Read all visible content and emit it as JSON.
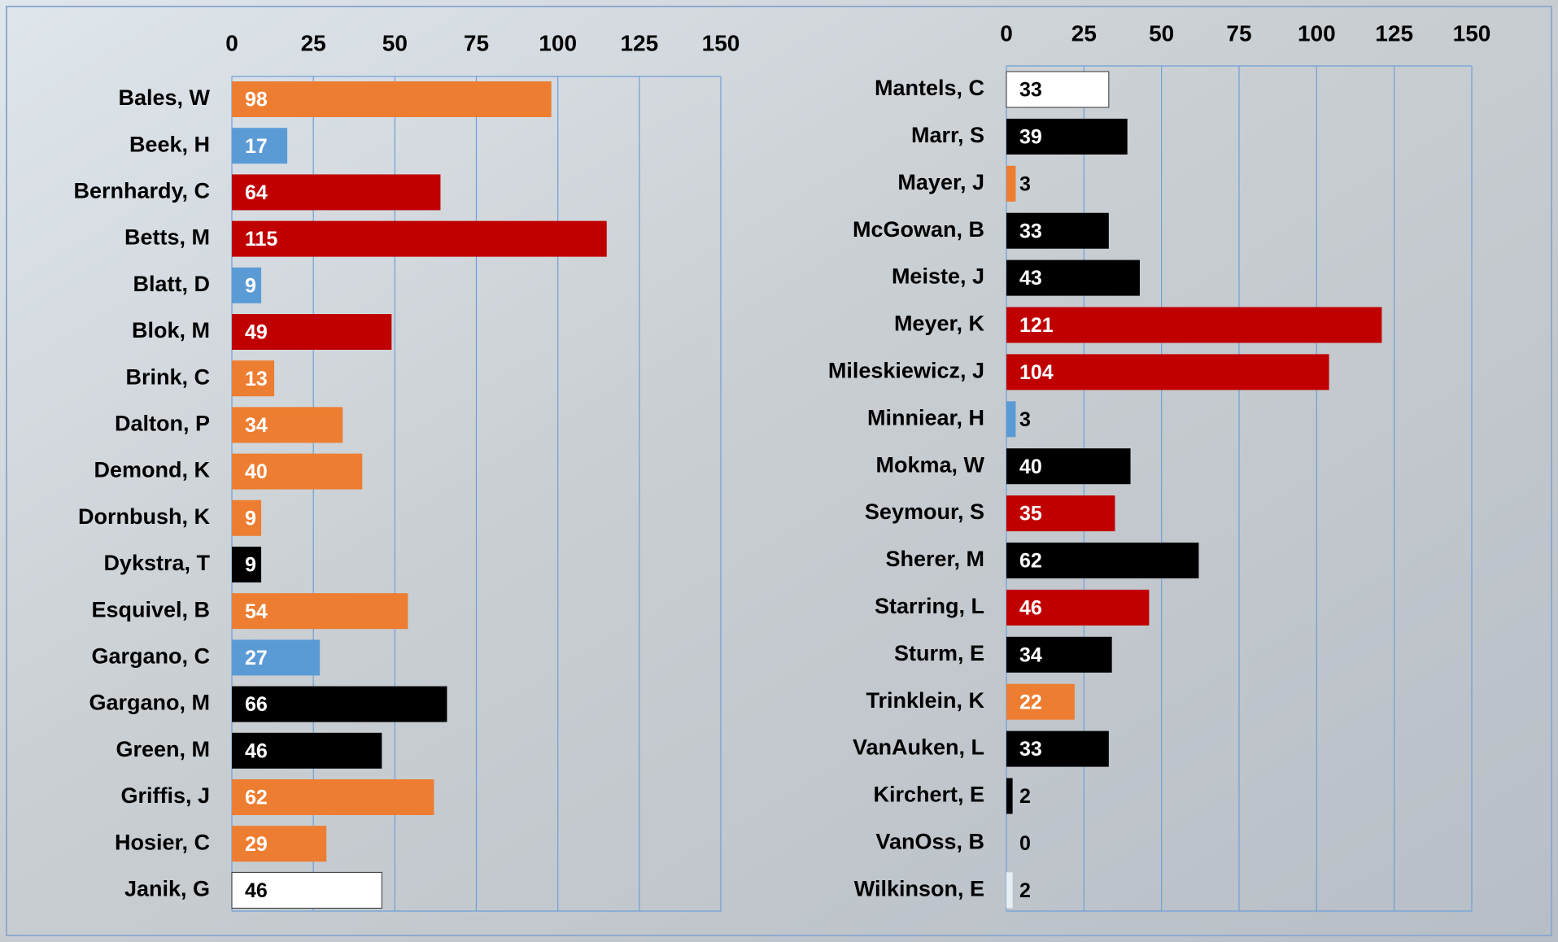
{
  "chart_data": [
    {
      "type": "bar",
      "orientation": "horizontal",
      "categories": [
        "Bales, W",
        "Beek, H",
        "Bernhardy, C",
        "Betts, M",
        "Blatt, D",
        "Blok, M",
        "Brink, C",
        "Dalton, P",
        "Demond, K",
        "Dornbush, K",
        "Dykstra, T",
        "Esquivel, B",
        "Gargano, C",
        "Gargano, M",
        "Green, M",
        "Griffis, J",
        "Hosier, C",
        "Janik, G"
      ],
      "values": [
        98,
        17,
        64,
        115,
        9,
        49,
        13,
        34,
        40,
        9,
        9,
        54,
        27,
        66,
        46,
        62,
        29,
        46
      ],
      "colors": [
        "#ed7d31",
        "#5b9bd5",
        "#c00000",
        "#c00000",
        "#5b9bd5",
        "#c00000",
        "#ed7d31",
        "#ed7d31",
        "#ed7d31",
        "#ed7d31",
        "#000000",
        "#ed7d31",
        "#5b9bd5",
        "#000000",
        "#000000",
        "#ed7d31",
        "#ed7d31",
        "#ffffff"
      ],
      "xlim": [
        0,
        150
      ],
      "xticks": [
        0,
        25,
        50,
        75,
        100,
        125,
        150
      ],
      "grid": true
    },
    {
      "type": "bar",
      "orientation": "horizontal",
      "categories": [
        "Mantels, C",
        "Marr, S",
        "Mayer, J",
        "McGowan, B",
        "Meiste, J",
        "Meyer, K",
        "Mileskiewicz, J",
        "Minniear, H",
        "Mokma, W",
        "Seymour, S",
        "Sherer, M",
        "Starring, L",
        "Sturm, E",
        "Trinklein, K",
        "VanAuken, L",
        "Kirchert, E",
        "VanOss, B",
        "Wilkinson, E"
      ],
      "values": [
        33,
        39,
        3,
        33,
        43,
        121,
        104,
        3,
        40,
        35,
        62,
        46,
        34,
        22,
        33,
        2,
        0,
        2
      ],
      "colors": [
        "#ffffff",
        "#000000",
        "#ed7d31",
        "#000000",
        "#000000",
        "#c00000",
        "#c00000",
        "#5b9bd5",
        "#000000",
        "#c00000",
        "#000000",
        "#c00000",
        "#000000",
        "#ed7d31",
        "#000000",
        "#000000",
        "#ffffff",
        "#e8eef6"
      ],
      "xlim": [
        0,
        150
      ],
      "xticks": [
        0,
        25,
        50,
        75,
        100,
        125,
        150
      ],
      "grid": true
    }
  ]
}
